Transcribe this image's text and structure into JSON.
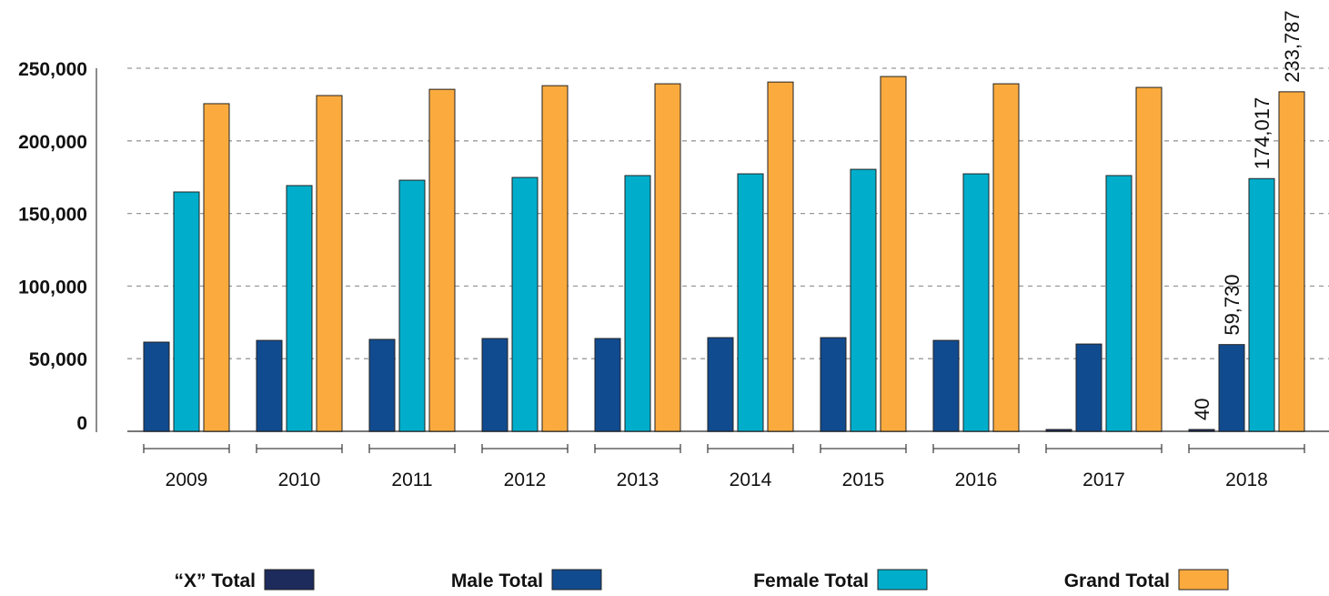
{
  "chart_data": {
    "type": "bar",
    "title": "",
    "xlabel": "",
    "ylabel": "",
    "ylim": [
      0,
      250000
    ],
    "yticks": [
      0,
      50000,
      100000,
      150000,
      200000,
      250000
    ],
    "ytick_labels": [
      "0",
      "50,000",
      "100,000",
      "150,000",
      "200,000",
      "250,000"
    ],
    "grid": "horizontal dashed",
    "legend_placement": "bottom",
    "categories": [
      "2009",
      "2010",
      "2011",
      "2012",
      "2013",
      "2014",
      "2015",
      "2016",
      "2017",
      "2018"
    ],
    "series": [
      {
        "name": "“X” Total",
        "color": "#1c2a5c",
        "values": [
          null,
          null,
          null,
          null,
          null,
          null,
          null,
          null,
          40,
          40
        ]
      },
      {
        "name": "Male Total",
        "color": "#114b8f",
        "values": [
          61400,
          62600,
          63300,
          63900,
          63900,
          64500,
          64500,
          62600,
          60100,
          59730
        ]
      },
      {
        "name": "Female Total",
        "color": "#00aecb",
        "values": [
          164800,
          169200,
          172900,
          174800,
          176100,
          177300,
          180400,
          177300,
          176100,
          174017
        ]
      },
      {
        "name": "Grand Total",
        "color": "#fbab3e",
        "values": [
          225600,
          231200,
          235500,
          238000,
          239300,
          240500,
          244300,
          239300,
          236800,
          233787
        ]
      }
    ],
    "data_labels": [
      {
        "category": "2018",
        "series": "“X” Total",
        "text": "40"
      },
      {
        "category": "2018",
        "series": "Male Total",
        "text": "59,730"
      },
      {
        "category": "2018",
        "series": "Female Total",
        "text": "174,017"
      },
      {
        "category": "2018",
        "series": "Grand Total",
        "text": "233,787"
      }
    ]
  }
}
